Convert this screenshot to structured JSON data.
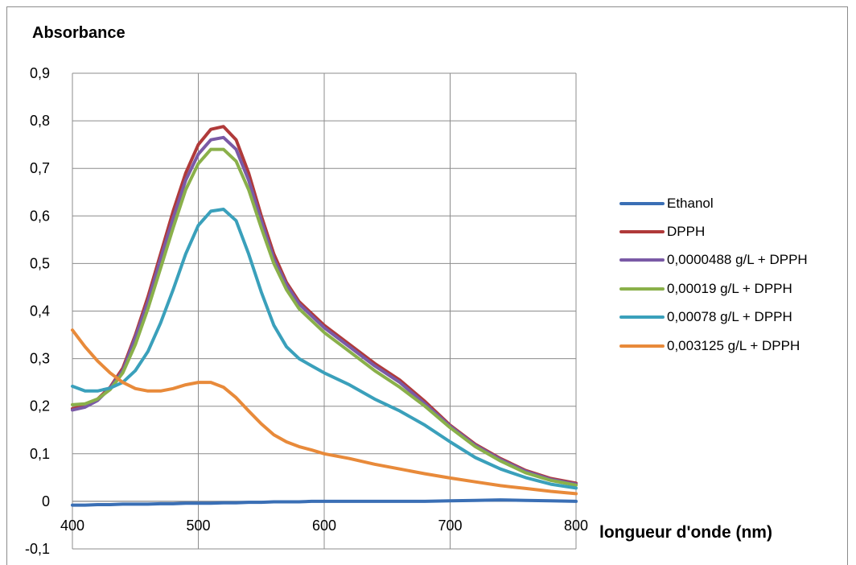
{
  "chart_data": {
    "type": "line",
    "ylabel": "Absorbance",
    "xlabel": "longueur d'onde (nm)",
    "xlim": [
      400,
      800
    ],
    "ylim": [
      -0.1,
      0.9
    ],
    "x_ticks": [
      "400",
      "500",
      "600",
      "700",
      "800"
    ],
    "y_ticks": [
      "-0,1",
      "0",
      "0,1",
      "0,2",
      "0,3",
      "0,4",
      "0,5",
      "0,6",
      "0,7",
      "0,8",
      "0,9"
    ],
    "grid": true,
    "legend_position": "right",
    "x": [
      400,
      410,
      420,
      430,
      440,
      450,
      460,
      470,
      480,
      490,
      500,
      510,
      520,
      530,
      540,
      550,
      560,
      570,
      580,
      590,
      600,
      620,
      640,
      660,
      680,
      700,
      720,
      740,
      760,
      780,
      800
    ],
    "series": [
      {
        "name": "Ethanol",
        "color": "#3a6fb5",
        "values": [
          -0.008,
          -0.008,
          -0.007,
          -0.007,
          -0.006,
          -0.006,
          -0.006,
          -0.005,
          -0.005,
          -0.004,
          -0.004,
          -0.004,
          -0.003,
          -0.003,
          -0.002,
          -0.002,
          -0.001,
          -0.001,
          -0.001,
          0.0,
          0.0,
          0.0,
          0.0,
          0.0,
          0.0,
          0.001,
          0.002,
          0.003,
          0.002,
          0.001,
          0.0
        ]
      },
      {
        "name": "DPPH",
        "color": "#b03a3a",
        "values": [
          0.195,
          0.2,
          0.215,
          0.24,
          0.28,
          0.35,
          0.43,
          0.52,
          0.61,
          0.69,
          0.75,
          0.782,
          0.788,
          0.76,
          0.69,
          0.6,
          0.52,
          0.46,
          0.42,
          0.395,
          0.37,
          0.33,
          0.29,
          0.255,
          0.21,
          0.16,
          0.12,
          0.09,
          0.065,
          0.048,
          0.038
        ]
      },
      {
        "name": "0,0000488 g/L + DPPH",
        "color": "#7a5aa6",
        "values": [
          0.192,
          0.198,
          0.212,
          0.238,
          0.275,
          0.345,
          0.42,
          0.51,
          0.595,
          0.675,
          0.73,
          0.76,
          0.765,
          0.74,
          0.675,
          0.59,
          0.51,
          0.455,
          0.415,
          0.39,
          0.365,
          0.325,
          0.285,
          0.25,
          0.205,
          0.158,
          0.118,
          0.088,
          0.063,
          0.046,
          0.036
        ]
      },
      {
        "name": "0,00019 g/L + DPPH",
        "color": "#8ab04a",
        "values": [
          0.203,
          0.205,
          0.215,
          0.235,
          0.27,
          0.33,
          0.405,
          0.49,
          0.575,
          0.655,
          0.71,
          0.74,
          0.74,
          0.715,
          0.655,
          0.575,
          0.5,
          0.445,
          0.405,
          0.38,
          0.355,
          0.315,
          0.275,
          0.24,
          0.2,
          0.155,
          0.115,
          0.085,
          0.06,
          0.044,
          0.034
        ]
      },
      {
        "name": "0,00078 g/L + DPPH",
        "color": "#3aa0bb",
        "values": [
          0.242,
          0.232,
          0.232,
          0.238,
          0.25,
          0.275,
          0.315,
          0.375,
          0.445,
          0.52,
          0.58,
          0.61,
          0.614,
          0.59,
          0.52,
          0.44,
          0.37,
          0.325,
          0.3,
          0.285,
          0.27,
          0.245,
          0.215,
          0.19,
          0.16,
          0.125,
          0.092,
          0.068,
          0.05,
          0.036,
          0.028
        ]
      },
      {
        "name": "0,003125 g/L + DPPH",
        "color": "#e88a3a",
        "values": [
          0.36,
          0.325,
          0.295,
          0.27,
          0.25,
          0.237,
          0.232,
          0.232,
          0.237,
          0.245,
          0.25,
          0.25,
          0.24,
          0.218,
          0.19,
          0.163,
          0.14,
          0.125,
          0.115,
          0.108,
          0.1,
          0.09,
          0.078,
          0.068,
          0.058,
          0.049,
          0.041,
          0.033,
          0.027,
          0.021,
          0.016
        ]
      }
    ]
  }
}
